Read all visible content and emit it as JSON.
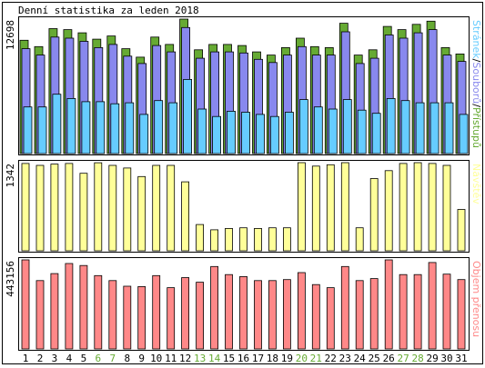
{
  "chart_data": [
    {
      "type": "bar",
      "title": "Denní statistika za leden 2018",
      "ymax_label": "12698",
      "side_label": {
        "parts": [
          "Stránek",
          "Souborů",
          "Přístupů"
        ],
        "separator": "/"
      },
      "categories": [
        "1",
        "2",
        "3",
        "4",
        "5",
        "6",
        "7",
        "8",
        "9",
        "10",
        "11",
        "12",
        "13",
        "14",
        "15",
        "16",
        "17",
        "18",
        "19",
        "20",
        "21",
        "22",
        "23",
        "24",
        "25",
        "26",
        "27",
        "28",
        "29",
        "30",
        "31"
      ],
      "weekend_days": [
        "6",
        "7",
        "13",
        "14",
        "20",
        "21",
        "27",
        "28"
      ],
      "ylim": [
        0,
        12698
      ],
      "series": [
        {
          "name": "Přístupů",
          "values": [
            10700,
            10100,
            11800,
            11700,
            11400,
            10800,
            11100,
            9900,
            9100,
            11000,
            10300,
            12698,
            9800,
            10300,
            10300,
            10200,
            9600,
            9300,
            10000,
            10900,
            10100,
            10000,
            12300,
            9300,
            9800,
            12000,
            11700,
            12200,
            12500,
            10000,
            9400
          ]
        },
        {
          "name": "Souborů",
          "values": [
            9900,
            9300,
            11000,
            10900,
            10600,
            10000,
            10300,
            9200,
            8500,
            10200,
            9600,
            11900,
            9000,
            9600,
            9600,
            9500,
            8900,
            8600,
            9300,
            10100,
            9300,
            9300,
            11500,
            8500,
            9000,
            11200,
            10900,
            11400,
            11700,
            9300,
            8700
          ]
        },
        {
          "name": "Stránek",
          "values": [
            4400,
            4400,
            5600,
            5200,
            4900,
            4900,
            4700,
            4800,
            3700,
            5000,
            4800,
            7000,
            4200,
            3500,
            4000,
            3900,
            3700,
            3500,
            3900,
            5100,
            4400,
            4200,
            5100,
            4100,
            3800,
            5200,
            5000,
            4800,
            4800,
            4800,
            3700
          ]
        }
      ],
      "colors": {
        "Přístupů": "#66aa33",
        "Souborů": "#8888ee",
        "Stránek": "#66ccff",
        "weekend": "#66aa33",
        "weekday": "#000000"
      }
    },
    {
      "type": "bar",
      "ymax_label": "1342",
      "side_label": {
        "parts": [
          "Návštěv"
        ]
      },
      "ylim": [
        0,
        1342
      ],
      "series": [
        {
          "name": "Návštěv",
          "values": [
            1330,
            1300,
            1320,
            1330,
            1180,
            1340,
            1300,
            1260,
            1130,
            1300,
            1300,
            1050,
            400,
            320,
            340,
            350,
            340,
            350,
            350,
            1342,
            1290,
            1310,
            1342,
            350,
            1100,
            1220,
            1330,
            1342,
            1330,
            1300,
            630
          ]
        }
      ],
      "colors": {
        "Návštěv": "#ffff99"
      }
    },
    {
      "type": "bar",
      "ymax_label": "443156",
      "side_label": {
        "parts": [
          "Objem přenosu"
        ]
      },
      "ylim": [
        0,
        443156
      ],
      "series": [
        {
          "name": "Objem přenosu",
          "values": [
            443156,
            340000,
            375000,
            425000,
            415000,
            365000,
            340000,
            312000,
            310000,
            365000,
            305000,
            355000,
            332000,
            410000,
            370000,
            360000,
            340000,
            340000,
            345000,
            380000,
            320000,
            305000,
            410000,
            340000,
            350000,
            443156,
            370000,
            370000,
            430000,
            372000,
            345000
          ]
        }
      ],
      "colors": {
        "Objem přenosu": "#ff8888"
      }
    }
  ]
}
